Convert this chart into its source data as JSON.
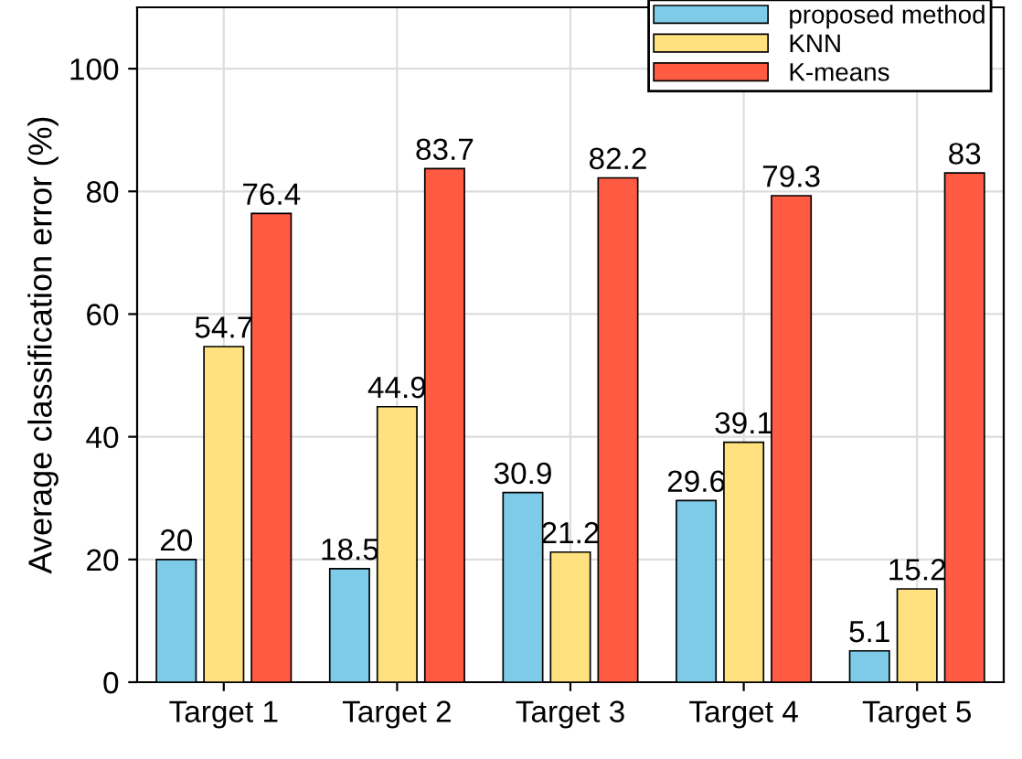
{
  "chart_data": {
    "type": "bar",
    "ylabel": "Average classification error (%)",
    "categories": [
      "Target 1",
      "Target 2",
      "Target 3",
      "Target 4",
      "Target 5"
    ],
    "series": [
      {
        "name": "proposed method",
        "color": "#7ecbe8",
        "values": [
          20,
          18.5,
          30.9,
          29.6,
          5.1
        ]
      },
      {
        "name": "KNN",
        "color": "#ffe27f",
        "values": [
          54.7,
          44.9,
          21.2,
          39.1,
          15.2
        ]
      },
      {
        "name": "K-means",
        "color": "#ff5a42",
        "values": [
          76.4,
          83.7,
          82.2,
          79.3,
          83
        ]
      }
    ],
    "ylim": [
      0,
      110
    ],
    "yticks": [
      0,
      20,
      40,
      60,
      80,
      100
    ],
    "grid": true,
    "legend": "top right",
    "data_labels": true
  }
}
